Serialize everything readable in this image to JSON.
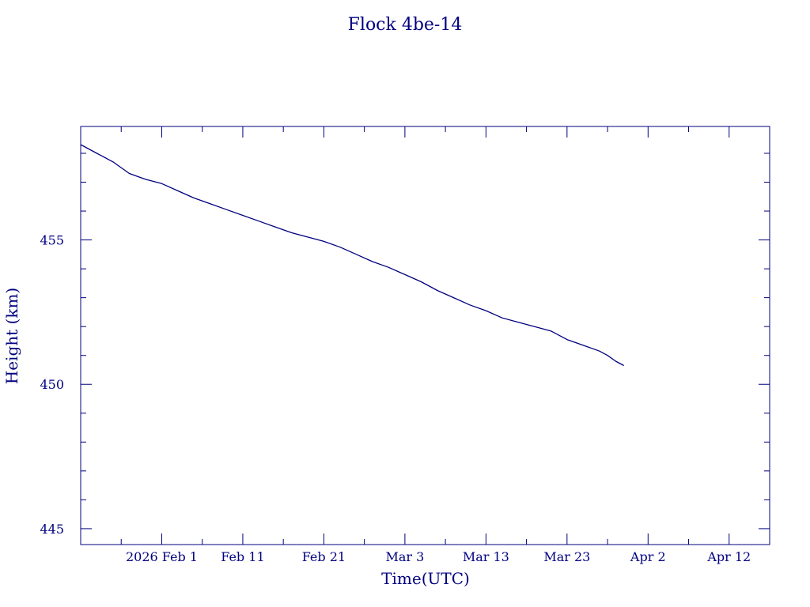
{
  "chart_data": {
    "type": "line",
    "title": "Flock 4be-14",
    "xlabel": "Time(UTC)",
    "ylabel": "Height (km)",
    "color": "#00007f",
    "grid": false,
    "x_range": [
      "2026-01-22",
      "2026-04-17"
    ],
    "ylim": [
      444.45,
      458.93
    ],
    "x_ticks": [
      {
        "date": "2026-02-01",
        "label": "2026 Feb  1"
      },
      {
        "date": "2026-02-11",
        "label": "Feb 11"
      },
      {
        "date": "2026-02-21",
        "label": "Feb 21"
      },
      {
        "date": "2026-03-03",
        "label": "Mar  3"
      },
      {
        "date": "2026-03-13",
        "label": "Mar 13"
      },
      {
        "date": "2026-03-23",
        "label": "Mar 23"
      },
      {
        "date": "2026-04-02",
        "label": "Apr  2"
      },
      {
        "date": "2026-04-12",
        "label": "Apr 12"
      }
    ],
    "y_ticks": [
      {
        "value": 445,
        "label": "445"
      },
      {
        "value": 450,
        "label": "450"
      },
      {
        "value": 455,
        "label": "455"
      }
    ],
    "series": [
      {
        "points": [
          [
            "2026-01-22",
            458.3
          ],
          [
            "2026-01-24",
            458.0
          ],
          [
            "2026-01-26",
            457.7
          ],
          [
            "2026-01-28",
            457.3
          ],
          [
            "2026-01-30",
            457.1
          ],
          [
            "2026-02-01",
            456.95
          ],
          [
            "2026-02-03",
            456.7
          ],
          [
            "2026-02-05",
            456.45
          ],
          [
            "2026-02-07",
            456.25
          ],
          [
            "2026-02-09",
            456.05
          ],
          [
            "2026-02-11",
            455.85
          ],
          [
            "2026-02-13",
            455.65
          ],
          [
            "2026-02-15",
            455.45
          ],
          [
            "2026-02-17",
            455.25
          ],
          [
            "2026-02-19",
            455.1
          ],
          [
            "2026-02-21",
            454.95
          ],
          [
            "2026-02-23",
            454.75
          ],
          [
            "2026-02-25",
            454.5
          ],
          [
            "2026-02-27",
            454.25
          ],
          [
            "2026-03-01",
            454.05
          ],
          [
            "2026-03-03",
            453.8
          ],
          [
            "2026-03-05",
            453.55
          ],
          [
            "2026-03-07",
            453.25
          ],
          [
            "2026-03-09",
            453.0
          ],
          [
            "2026-03-11",
            452.75
          ],
          [
            "2026-03-13",
            452.55
          ],
          [
            "2026-03-15",
            452.3
          ],
          [
            "2026-03-17",
            452.15
          ],
          [
            "2026-03-19",
            452.0
          ],
          [
            "2026-03-21",
            451.85
          ],
          [
            "2026-03-23",
            451.55
          ],
          [
            "2026-03-25",
            451.35
          ],
          [
            "2026-03-27",
            451.15
          ],
          [
            "2026-03-28",
            451.0
          ],
          [
            "2026-03-29",
            450.8
          ],
          [
            "2026-03-30",
            450.65
          ]
        ]
      }
    ]
  }
}
